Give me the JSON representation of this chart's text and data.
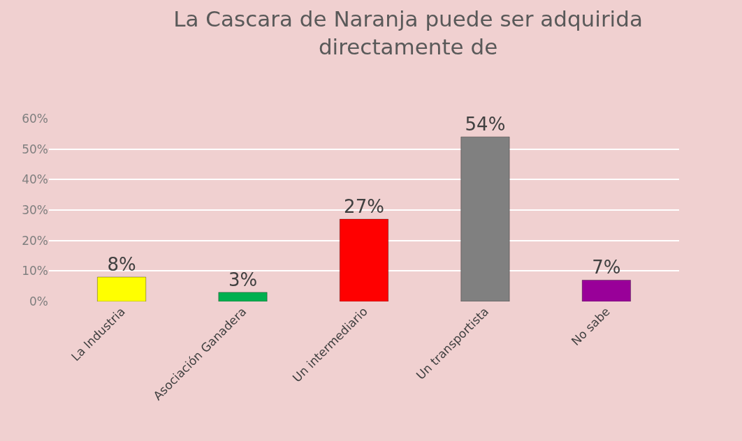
{
  "chart_data": {
    "type": "bar",
    "title": "La Cascara de Naranja puede ser adquirida directamente de",
    "categories": [
      "La Industria",
      "Asociación Ganadera",
      "Un intermediario",
      "Un transportista",
      "No sabe"
    ],
    "values": [
      8,
      3,
      27,
      54,
      7
    ],
    "colors": [
      "#ffff00",
      "#00b050",
      "#ff0000",
      "#808080",
      "#990099"
    ],
    "value_labels": [
      "8%",
      "3%",
      "27%",
      "54%",
      "7%"
    ],
    "ylim": [
      0,
      60
    ],
    "yticks": [
      {
        "value": 0,
        "label": "0%"
      },
      {
        "value": 10,
        "label": "10%"
      },
      {
        "value": 20,
        "label": "20%"
      },
      {
        "value": 30,
        "label": "30%"
      },
      {
        "value": 40,
        "label": "40%"
      },
      {
        "value": 50,
        "label": "50%"
      },
      {
        "value": 60,
        "label": "60%"
      }
    ],
    "grid": "y"
  }
}
